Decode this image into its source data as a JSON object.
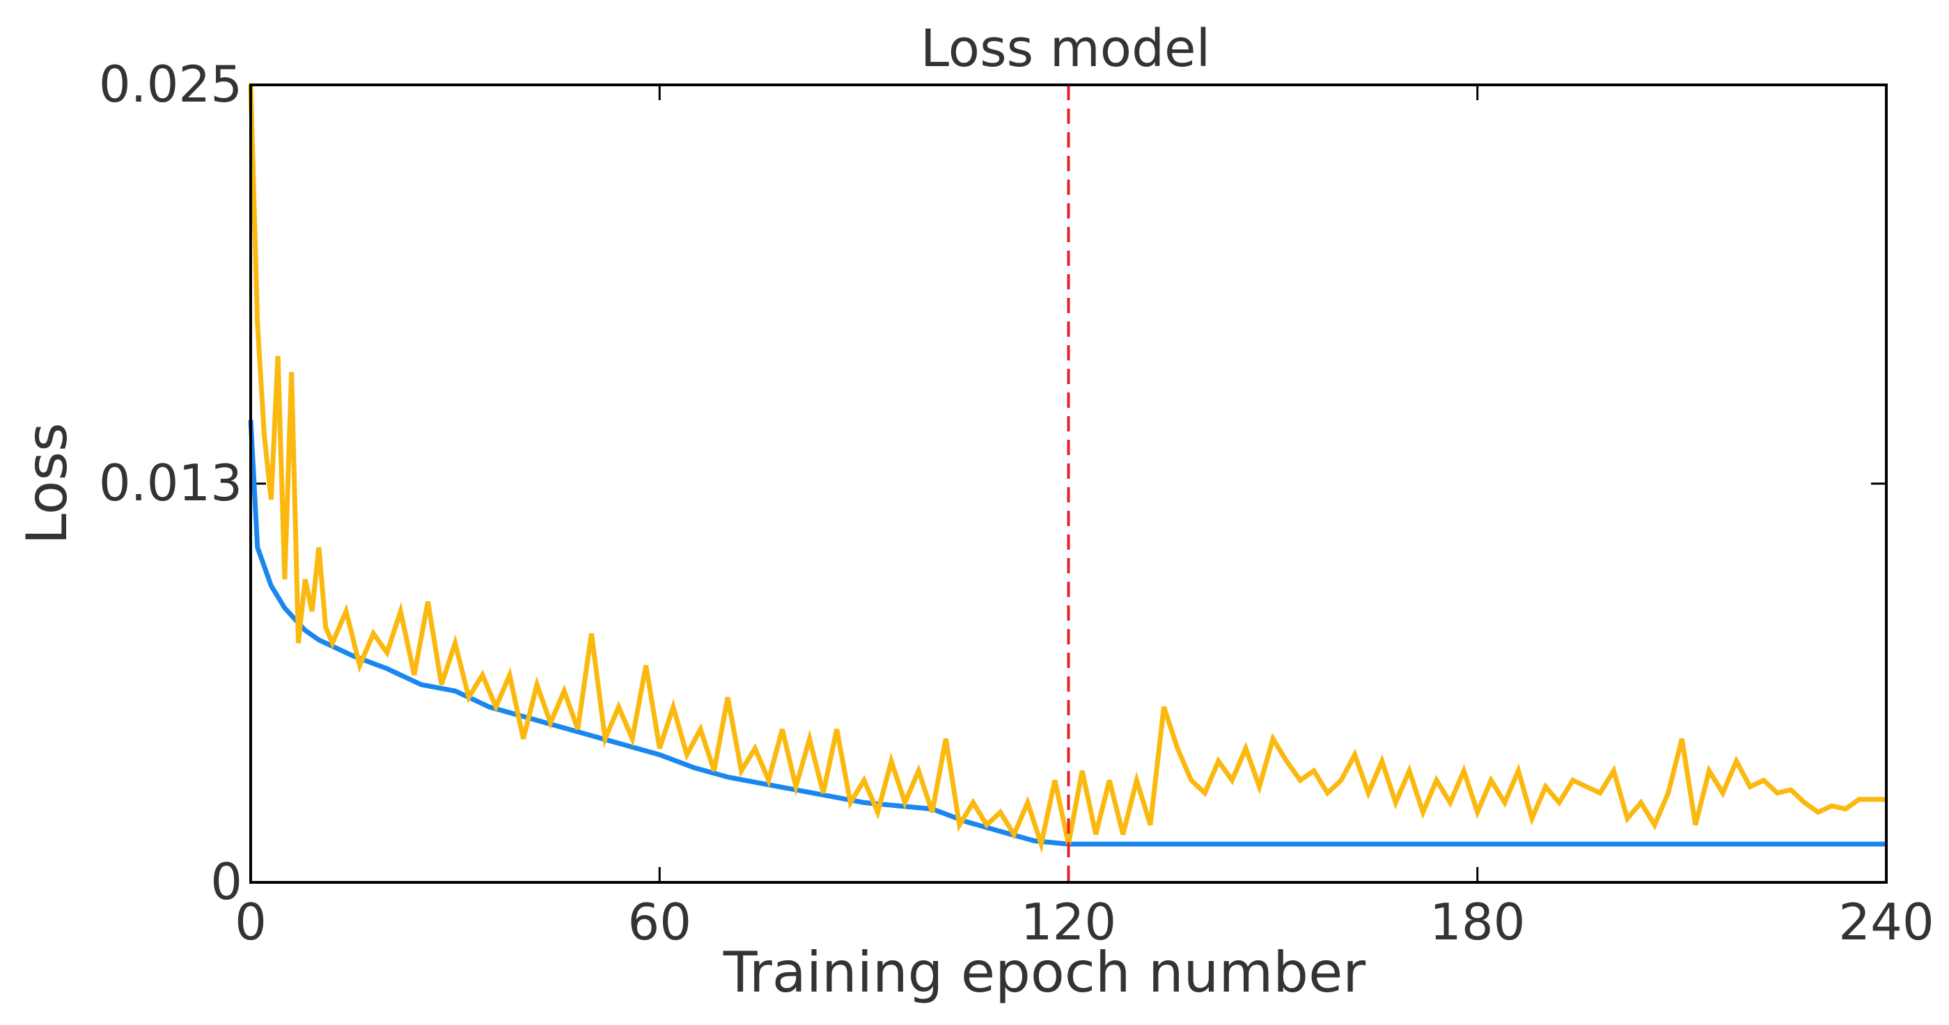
{
  "chart_data": {
    "type": "line",
    "title": "Loss model",
    "x_label": "Training epoch number",
    "y_label": "Loss",
    "xlim": [
      0,
      240
    ],
    "ylim": [
      0,
      0.025
    ],
    "xticks": [
      0,
      60,
      120,
      180,
      240
    ],
    "yticks": [
      0,
      {
        "value": 0.0125,
        "label": "0.013"
      },
      0.025
    ],
    "vlines": [
      {
        "x": 120,
        "color": "#e8202a",
        "dashed": true
      }
    ],
    "series": [
      {
        "color": "#1a86f0",
        "x": [
          0,
          1,
          3,
          5,
          8,
          10,
          15,
          20,
          25,
          30,
          35,
          40,
          45,
          50,
          55,
          60,
          65,
          70,
          75,
          80,
          85,
          90,
          95,
          100,
          105,
          110,
          115,
          120,
          240
        ],
        "values": [
          0.0145,
          0.0105,
          0.0093,
          0.0086,
          0.0079,
          0.0076,
          0.0071,
          0.0067,
          0.0062,
          0.006,
          0.0055,
          0.0052,
          0.0049,
          0.0046,
          0.0043,
          0.004,
          0.0036,
          0.0033,
          0.0031,
          0.0029,
          0.0027,
          0.0025,
          0.0024,
          0.0023,
          0.0019,
          0.0016,
          0.0013,
          0.0012,
          0.0012
        ]
      },
      {
        "color": "#fbb80f",
        "x": [
          0,
          1,
          2,
          3,
          4,
          5,
          6,
          7,
          8,
          9,
          10,
          11,
          12,
          14,
          16,
          18,
          20,
          22,
          24,
          26,
          28,
          30,
          32,
          34,
          36,
          38,
          40,
          42,
          44,
          46,
          48,
          50,
          52,
          54,
          56,
          58,
          60,
          62,
          64,
          66,
          68,
          70,
          72,
          74,
          76,
          78,
          80,
          82,
          84,
          86,
          88,
          90,
          92,
          94,
          96,
          98,
          100,
          102,
          104,
          106,
          108,
          110,
          112,
          114,
          116,
          118,
          120,
          122,
          124,
          126,
          128,
          130,
          132,
          134,
          136,
          138,
          140,
          142,
          144,
          146,
          148,
          150,
          152,
          154,
          156,
          158,
          160,
          162,
          164,
          166,
          168,
          170,
          172,
          174,
          176,
          178,
          180,
          182,
          184,
          186,
          188,
          190,
          192,
          194,
          196,
          198,
          200,
          202,
          204,
          206,
          208,
          210,
          212,
          214,
          216,
          218,
          220,
          222,
          224,
          226,
          228,
          230,
          232,
          234,
          236,
          240
        ],
        "values": [
          0.025,
          0.0175,
          0.014,
          0.012,
          0.0165,
          0.0095,
          0.016,
          0.0075,
          0.0095,
          0.0085,
          0.0105,
          0.008,
          0.0075,
          0.0085,
          0.0068,
          0.0078,
          0.0072,
          0.0085,
          0.0065,
          0.0088,
          0.0062,
          0.0075,
          0.0058,
          0.0065,
          0.0055,
          0.0065,
          0.0045,
          0.0062,
          0.005,
          0.006,
          0.0048,
          0.0078,
          0.0045,
          0.0055,
          0.0045,
          0.0068,
          0.0042,
          0.0055,
          0.004,
          0.0048,
          0.0035,
          0.0058,
          0.0035,
          0.0042,
          0.0032,
          0.0048,
          0.003,
          0.0045,
          0.0028,
          0.0048,
          0.0025,
          0.0032,
          0.0022,
          0.0038,
          0.0025,
          0.0035,
          0.0022,
          0.0045,
          0.0018,
          0.0025,
          0.0018,
          0.0022,
          0.0015,
          0.0025,
          0.0012,
          0.0032,
          0.0012,
          0.0035,
          0.0015,
          0.0032,
          0.0015,
          0.0032,
          0.0018,
          0.0055,
          0.0042,
          0.0032,
          0.0028,
          0.0038,
          0.0032,
          0.0042,
          0.003,
          0.0045,
          0.0038,
          0.0032,
          0.0035,
          0.0028,
          0.0032,
          0.004,
          0.0028,
          0.0038,
          0.0025,
          0.0035,
          0.0022,
          0.0032,
          0.0025,
          0.0035,
          0.0022,
          0.0032,
          0.0025,
          0.0035,
          0.002,
          0.003,
          0.0025,
          0.0032,
          0.003,
          0.0028,
          0.0035,
          0.002,
          0.0025,
          0.0018,
          0.0028,
          0.0045,
          0.0018,
          0.0035,
          0.0028,
          0.0038,
          0.003,
          0.0032,
          0.0028,
          0.0029,
          0.0025,
          0.0022,
          0.0024,
          0.0023,
          0.0026,
          0.0026
        ]
      }
    ]
  }
}
